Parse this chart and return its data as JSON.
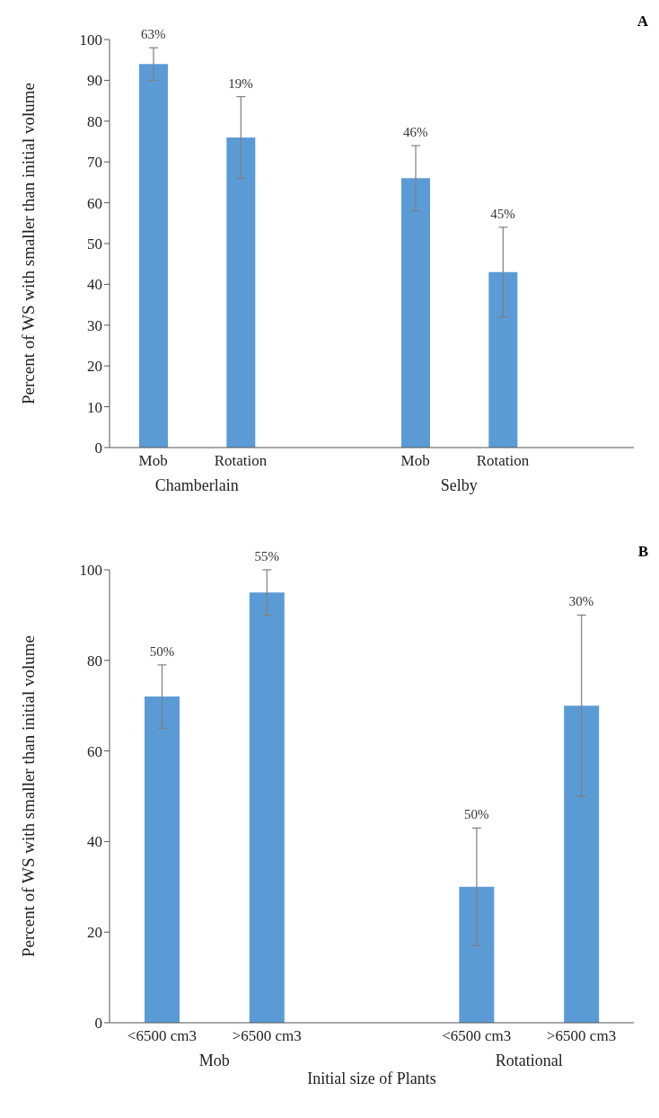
{
  "chart_data": [
    {
      "type": "bar",
      "title": "A",
      "ylabel": "Percent of WS with smaller than initial volume",
      "categories": [
        "Mob",
        "Rotation",
        null,
        "Mob",
        "Rotation",
        null
      ],
      "values": [
        94,
        76,
        null,
        66,
        43,
        null
      ],
      "errors": [
        4,
        10,
        null,
        8,
        11,
        null
      ],
      "color": "#5b9bd5",
      "ylim": [
        0,
        100
      ],
      "yticks": [
        0,
        10,
        20,
        30,
        40,
        50,
        60,
        70,
        80,
        90,
        100
      ],
      "annotations": [
        "Chamberlain",
        "Selby",
        "63%",
        "19%",
        "46%",
        "45%"
      ]
    },
    {
      "type": "bar",
      "title": "B",
      "ylabel": "Percent of WS with smaller than initial volume",
      "xlabel": "Initial size of Plants",
      "categories": [
        "<6500 cm3",
        ">6500 cm3",
        null,
        "<6500 cm3",
        ">6500 cm3"
      ],
      "values": [
        72,
        95,
        null,
        30,
        70
      ],
      "errors": [
        7,
        5,
        null,
        13,
        20
      ],
      "color": "#5b9bd5",
      "ylim": [
        0,
        100
      ],
      "yticks": [
        0,
        20,
        40,
        60,
        80,
        100
      ],
      "annotations": [
        "Mob",
        "Rotational",
        "50%",
        "55%",
        "50%",
        "30%"
      ]
    }
  ]
}
